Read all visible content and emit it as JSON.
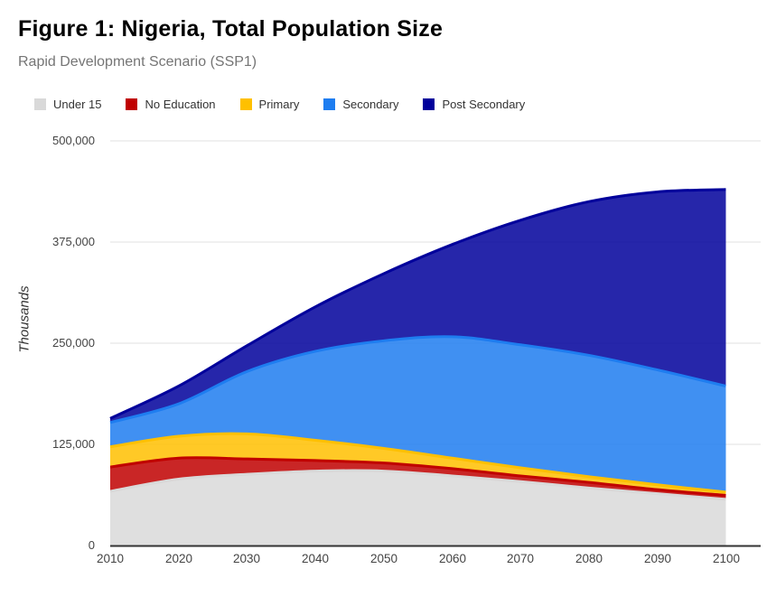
{
  "header": {
    "title": "Figure 1: Nigeria, Total Population Size",
    "subtitle": "Rapid Development Scenario (SSP1)"
  },
  "chart_data": {
    "type": "area",
    "stacked": true,
    "title": "Figure 1: Nigeria, Total Population Size",
    "subtitle": "Rapid Development Scenario (SSP1)",
    "xlabel": "",
    "ylabel": "Thousands",
    "units": "thousands of people",
    "grid": true,
    "legend_position": "top",
    "x": [
      2010,
      2020,
      2030,
      2040,
      2050,
      2060,
      2070,
      2080,
      2090,
      2100
    ],
    "series": [
      {
        "name": "Under 15",
        "color": "#d9d9d9",
        "values": [
          67000,
          82000,
          88000,
          92000,
          92000,
          86000,
          79000,
          71000,
          64000,
          57000
        ]
      },
      {
        "name": "No Education",
        "color": "#c00000",
        "values": [
          30000,
          26000,
          19000,
          13000,
          10000,
          9000,
          7000,
          7000,
          5000,
          5000
        ]
      },
      {
        "name": "Primary",
        "color": "#ffc000",
        "values": [
          25000,
          27000,
          31000,
          25000,
          18000,
          13000,
          10000,
          7000,
          6000,
          4000
        ]
      },
      {
        "name": "Secondary",
        "color": "#1e7df0",
        "values": [
          30000,
          40000,
          77000,
          110000,
          133000,
          150000,
          152000,
          150000,
          142000,
          131000
        ]
      },
      {
        "name": "Post Secondary",
        "color": "#00009b",
        "values": [
          5000,
          22000,
          32000,
          55000,
          83000,
          114000,
          154000,
          190000,
          220000,
          243000
        ]
      }
    ],
    "totals": [
      157000,
      197000,
      247000,
      295000,
      336000,
      372000,
      402000,
      425000,
      437000,
      440000
    ],
    "ylim": [
      0,
      500000
    ],
    "y_ticks": [
      "0",
      "125,000",
      "250,000",
      "375,000",
      "500,000"
    ],
    "y_tick_values": [
      0,
      125000,
      250000,
      375000,
      500000
    ],
    "area_fill_opacity": 0.85,
    "gridline_color": "#e0e0e0",
    "axis_line_color": "#333333"
  }
}
